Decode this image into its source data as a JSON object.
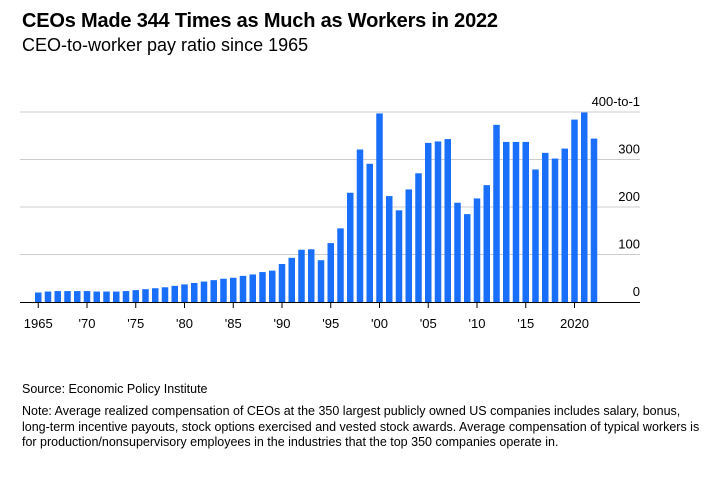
{
  "header": {
    "title": "CEOs Made 344 Times as Much as Workers in 2022",
    "subtitle": "CEO-to-worker pay ratio since 1965"
  },
  "footer": {
    "source": "Source: Economic Policy Institute",
    "note": "Note: Average realized compensation of CEOs at the 350 largest publicly owned US companies includes salary, bonus, long-term incentive payouts, stock options exercised and vested stock awards. Average compensation of typical workers is for production/nonsupervisory employees in the industries that the top 350 companies operate in."
  },
  "colors": {
    "bar": "#1a6ffa",
    "gridline": "#cccccc",
    "axis": "#000000"
  },
  "chart_data": {
    "type": "bar",
    "title": "CEOs Made 344 Times as Much as Workers in 2022",
    "subtitle": "CEO-to-worker pay ratio since 1965",
    "xlabel": "",
    "ylabel": "",
    "ylim": [
      0,
      400
    ],
    "grid": true,
    "y_ticks": [
      {
        "value": 0,
        "label": "0"
      },
      {
        "value": 100,
        "label": "100"
      },
      {
        "value": 200,
        "label": "200"
      },
      {
        "value": 300,
        "label": "300"
      },
      {
        "value": 400,
        "label": "400-to-1"
      }
    ],
    "x_ticks": [
      {
        "year": 1965,
        "label": "1965"
      },
      {
        "year": 1970,
        "label": "'70"
      },
      {
        "year": 1975,
        "label": "'75"
      },
      {
        "year": 1980,
        "label": "'80"
      },
      {
        "year": 1985,
        "label": "'85"
      },
      {
        "year": 1990,
        "label": "'90"
      },
      {
        "year": 1995,
        "label": "'95"
      },
      {
        "year": 2000,
        "label": "'00"
      },
      {
        "year": 2005,
        "label": "'05"
      },
      {
        "year": 2010,
        "label": "'10"
      },
      {
        "year": 2015,
        "label": "'15"
      },
      {
        "year": 2020,
        "label": "2020"
      }
    ],
    "categories": [
      1965,
      1966,
      1967,
      1968,
      1969,
      1970,
      1971,
      1972,
      1973,
      1974,
      1975,
      1976,
      1977,
      1978,
      1979,
      1980,
      1981,
      1982,
      1983,
      1984,
      1985,
      1986,
      1987,
      1988,
      1989,
      1990,
      1991,
      1992,
      1993,
      1994,
      1995,
      1996,
      1997,
      1998,
      1999,
      2000,
      2001,
      2002,
      2003,
      2004,
      2005,
      2006,
      2007,
      2008,
      2009,
      2010,
      2011,
      2012,
      2013,
      2014,
      2015,
      2016,
      2017,
      2018,
      2019,
      2020,
      2021,
      2022
    ],
    "values": [
      20,
      22,
      23,
      23,
      23,
      23,
      22,
      22,
      22,
      23,
      25,
      27,
      29,
      31,
      34,
      37,
      40,
      43,
      46,
      49,
      51,
      55,
      58,
      63,
      66,
      80,
      93,
      110,
      111,
      88,
      124,
      155,
      230,
      321,
      291,
      397,
      223,
      193,
      237,
      271,
      335,
      338,
      343,
      209,
      185,
      218,
      246,
      373,
      337,
      337,
      337,
      279,
      314,
      302,
      323,
      384,
      399,
      344
    ]
  }
}
